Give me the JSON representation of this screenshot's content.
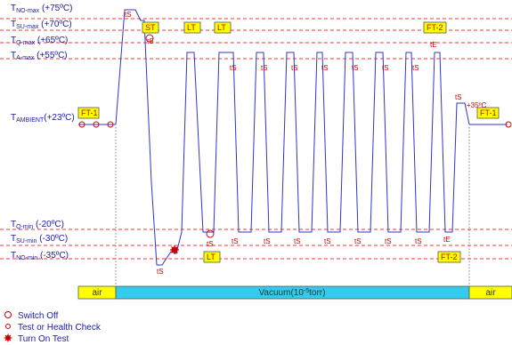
{
  "levels": [
    {
      "id": "no_max",
      "base": "T",
      "sub": "NO-max",
      "value": " (+75ºC)"
    },
    {
      "id": "su_max",
      "base": "T",
      "sub": "SU-max",
      "value": " (+70ºC)"
    },
    {
      "id": "q_max",
      "base": "T",
      "sub": "Q-max",
      "value": "  (+65ºC)"
    },
    {
      "id": "a_max",
      "base": "T",
      "sub": "A-max",
      "value": "  (+55ºC)"
    },
    {
      "id": "ambient",
      "base": "T",
      "sub": "AMBIENT",
      "value": "(+23ºC)"
    },
    {
      "id": "q_min",
      "base": "T",
      "sub": "Q-min",
      "value": "  (-20ºC)"
    },
    {
      "id": "su_min",
      "base": "T",
      "sub": "SU-min",
      "value": " (-30ºC)"
    },
    {
      "id": "no_min",
      "base": "T",
      "sub": "NO-min",
      "value": "  (-35ºC)"
    }
  ],
  "tags": {
    "ft1": "FT-1",
    "st": "ST",
    "lt": "LT",
    "ft2": "FT-2"
  },
  "markers": {
    "ts": "tS",
    "te": "tE",
    "plus35": "+35ºC"
  },
  "phases": {
    "air": "air",
    "vacuum_prefix": "Vacuum(10",
    "vacuum_exp": "-5",
    "vacuum_suffix": "torr)"
  },
  "legend": [
    {
      "icon": "switch-off-icon",
      "label": "Switch Off"
    },
    {
      "icon": "health-check-icon",
      "label": "Test or Health Check"
    },
    {
      "icon": "turn-on-test-icon",
      "label": "Turn On Test"
    }
  ],
  "colors": {
    "profile": "#3333cc",
    "threshold": "#ff3333",
    "tag": "#ffff00",
    "vacuum": "#33ccee",
    "air": "#ffff00",
    "marker": "#cc0000"
  }
}
